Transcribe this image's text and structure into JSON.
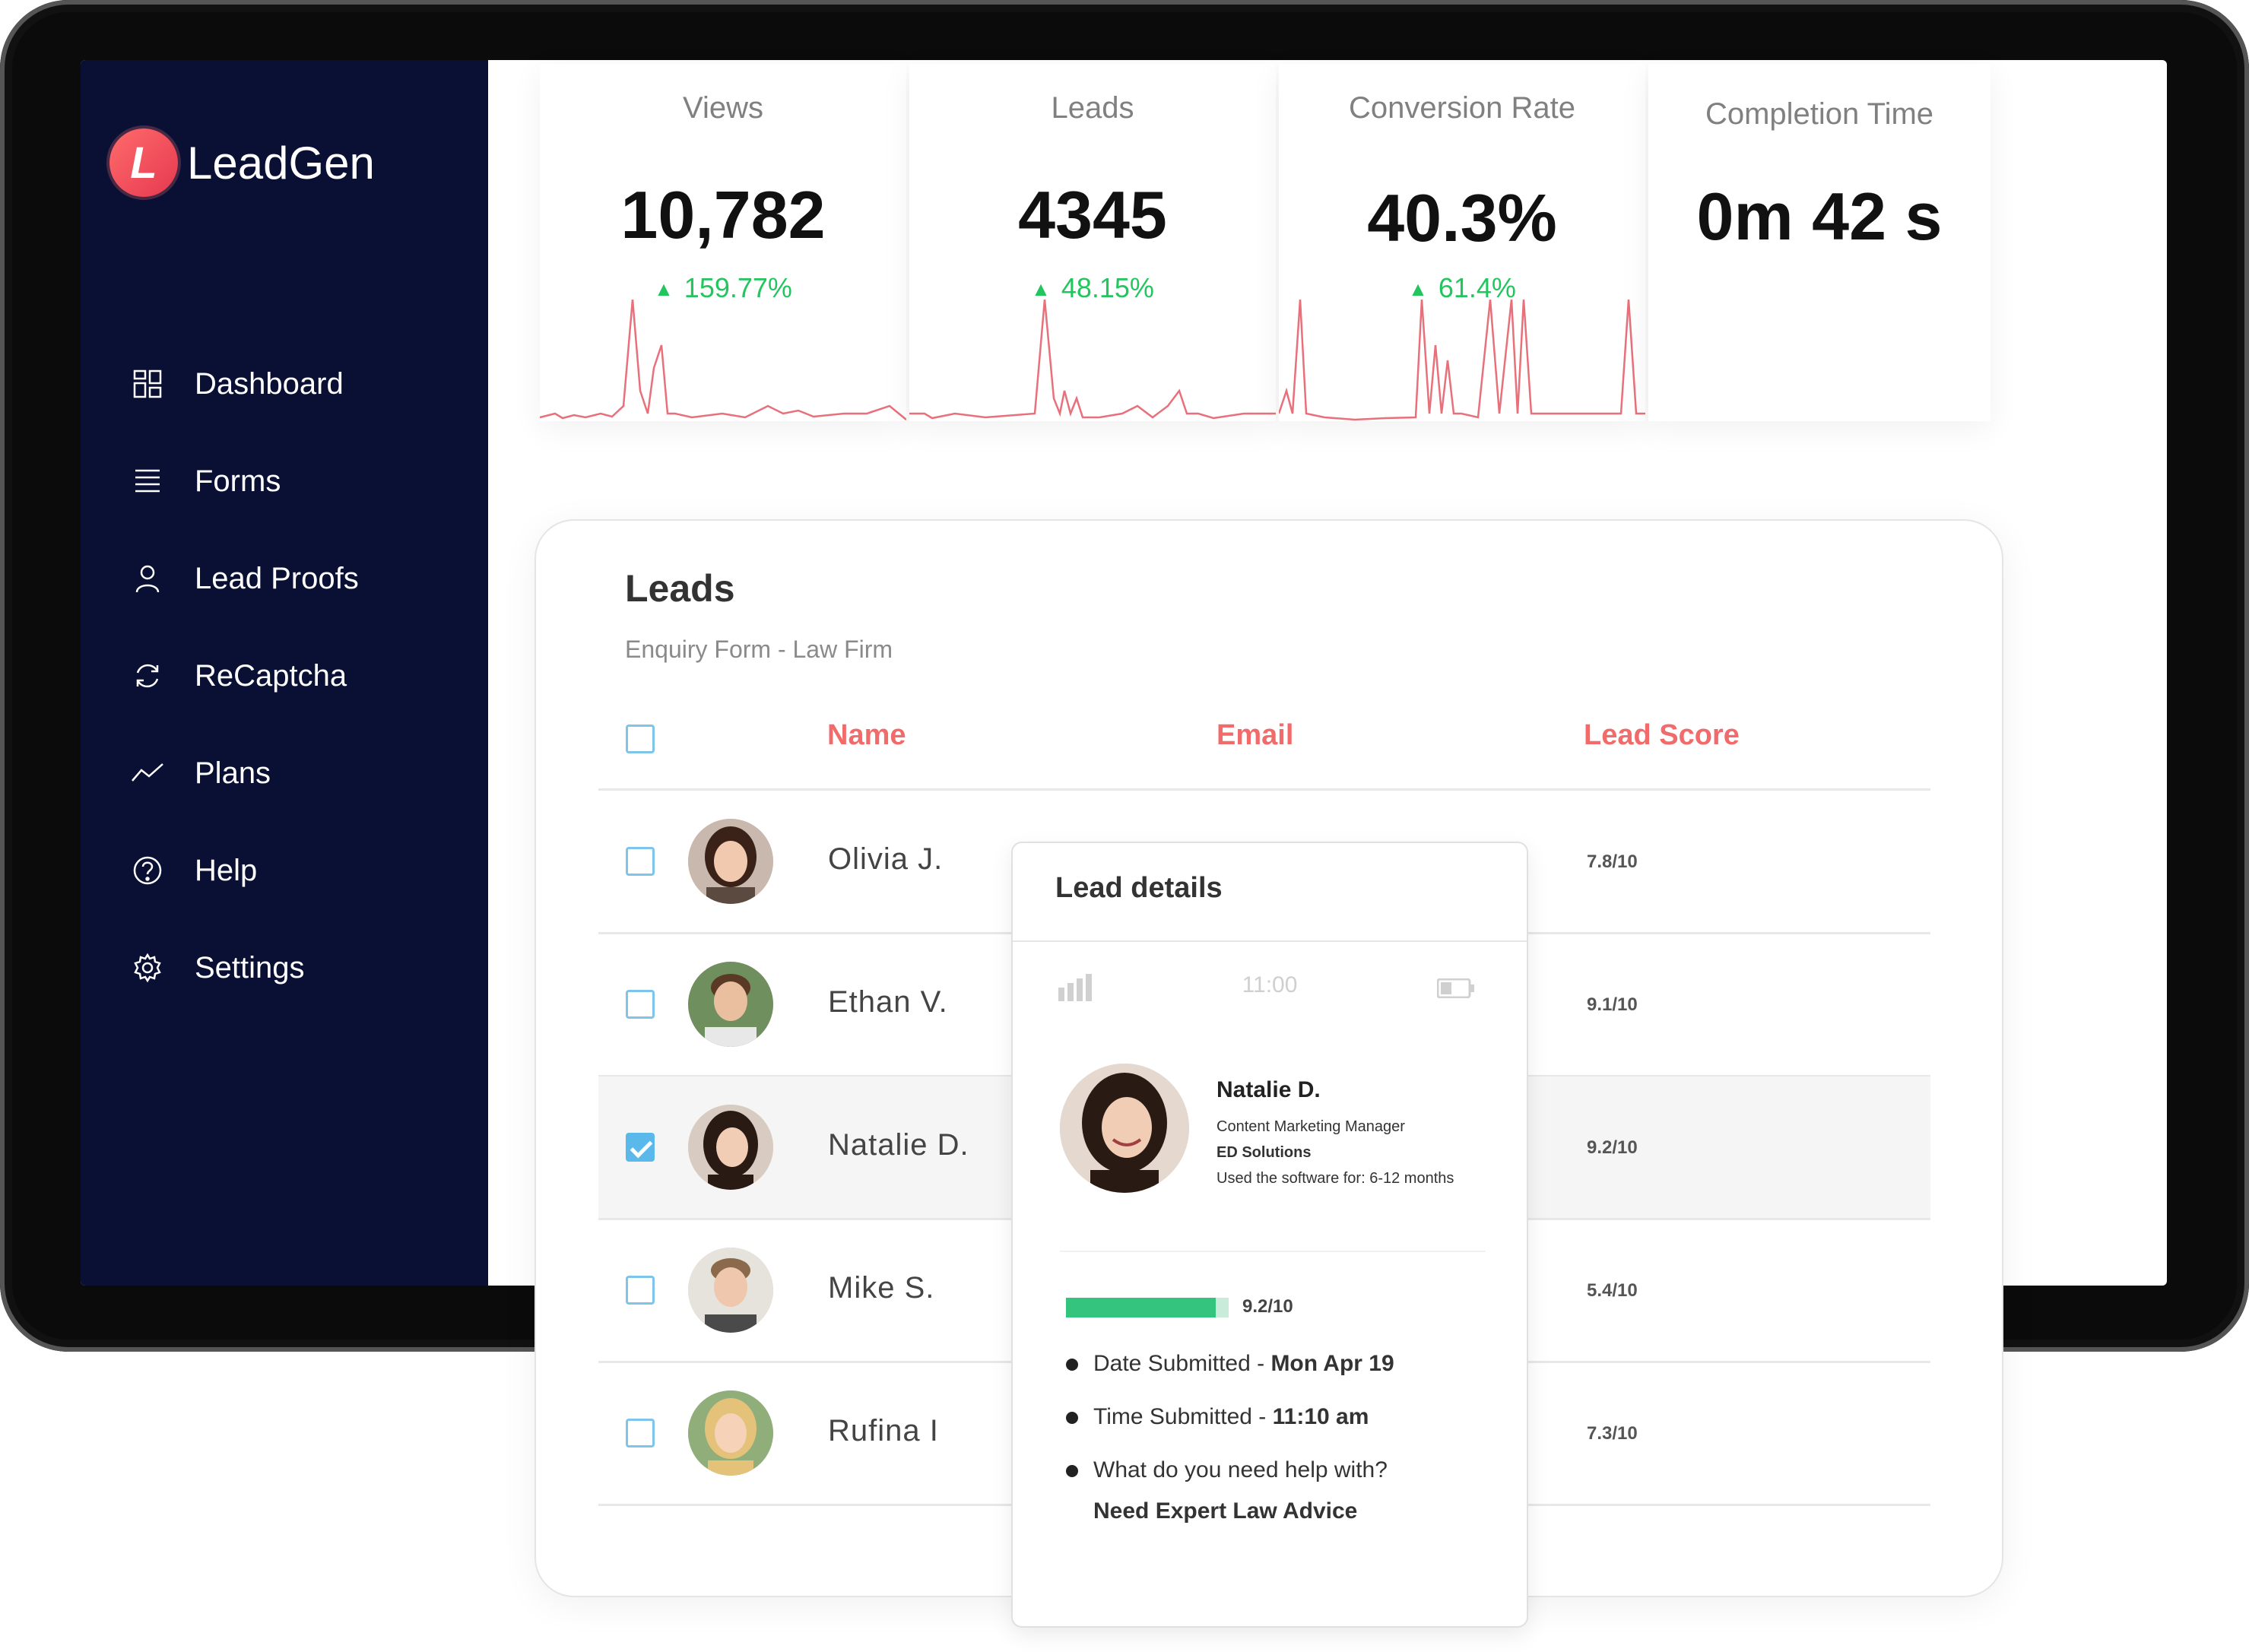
{
  "app": {
    "name": "LeadGen",
    "logo_letter": "L"
  },
  "sidebar": {
    "items": [
      {
        "label": "Dashboard",
        "icon": "grid-icon"
      },
      {
        "label": "Forms",
        "icon": "list-icon"
      },
      {
        "label": "Lead Proofs",
        "icon": "user-icon"
      },
      {
        "label": "ReCaptcha",
        "icon": "refresh-icon"
      },
      {
        "label": "Plans",
        "icon": "trend-icon"
      },
      {
        "label": "Help",
        "icon": "help-icon"
      },
      {
        "label": "Settings",
        "icon": "gear-icon"
      }
    ]
  },
  "stats": [
    {
      "label": "Views",
      "value": "10,782",
      "change": "159.77%"
    },
    {
      "label": "Leads",
      "value": "4345",
      "change": "48.15%"
    },
    {
      "label": "Conversion Rate",
      "value": "40.3%",
      "change": "61.4%"
    },
    {
      "label": "Completion Time",
      "value": "0m 42 s",
      "change": ""
    }
  ],
  "colors": {
    "sidebar": "#0a0f34",
    "accent": "#f26b6b",
    "positive": "#22c55e",
    "checkbox": "#5bb8ea",
    "score_bar": "#34c47e"
  },
  "leads": {
    "title": "Leads",
    "subtitle": "Enquiry Form - Law Firm",
    "columns": {
      "name": "Name",
      "email": "Email",
      "score": "Lead Score"
    },
    "rows": [
      {
        "name": "Olivia J.",
        "score": "7.8/10",
        "checked": false
      },
      {
        "name": "Ethan V.",
        "score": "9.1/10",
        "checked": false
      },
      {
        "name": "Natalie D.",
        "score": "9.2/10",
        "checked": true
      },
      {
        "name": "Mike S.",
        "score": "5.4/10",
        "checked": false
      },
      {
        "name": "Rufina I",
        "score": "7.3/10",
        "checked": false
      }
    ]
  },
  "lead_details": {
    "title": "Lead details",
    "time": "11:00",
    "name": "Natalie D.",
    "role": "Content Marketing Manager",
    "company": "ED Solutions",
    "usage": "Used the software for: 6-12 months",
    "score": "9.2/10",
    "score_fraction": 0.92,
    "date_label": "Date Submitted - ",
    "date_value": "Mon Apr 19",
    "time_label": "Time Submitted - ",
    "time_value": "11:10 am",
    "question": "What do you need help with?",
    "answer": "Need Expert Law Advice"
  }
}
